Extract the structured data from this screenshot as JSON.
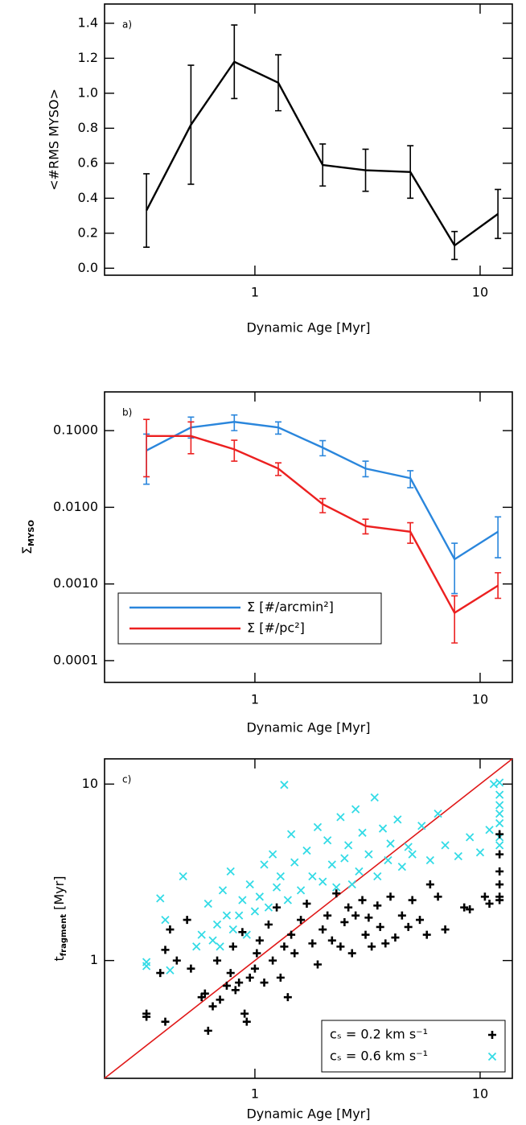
{
  "chart_data": [
    {
      "type": "line",
      "annotation": "a)",
      "x_label": "Dynamic Age [Myr]",
      "y_label": "<#RMS MYSO>",
      "x": [
        0.33,
        0.52,
        0.81,
        1.27,
        2.0,
        3.1,
        4.9,
        7.7,
        12.0
      ],
      "values": [
        0.33,
        0.82,
        1.18,
        1.06,
        0.59,
        0.56,
        0.55,
        0.13,
        0.31
      ],
      "errors": [
        0.21,
        0.34,
        0.21,
        0.16,
        0.12,
        0.12,
        0.15,
        0.08,
        0.14
      ],
      "color": "#000000",
      "xlim": [
        0.215,
        13.9
      ],
      "xticks": [
        1,
        10
      ],
      "xlog": true,
      "ylim": [
        -0.04,
        1.51
      ],
      "yticks": [
        {
          "value": 0,
          "label": "0.0"
        },
        0.2,
        0.4,
        0.6,
        0.8,
        {
          "value": 1,
          "label": "1.0"
        },
        1.2,
        1.4
      ]
    },
    {
      "type": "line",
      "annotation": "b)",
      "x_label": "Dynamic Age [Myr]",
      "y_label": {
        "text": "Σ",
        "sub": "MYSO"
      },
      "x": [
        0.33,
        0.52,
        0.81,
        1.27,
        2.0,
        3.1,
        4.9,
        7.7,
        12.0
      ],
      "series": [
        {
          "name": "Σ [#/arcmin²]",
          "color": "#2a86dc",
          "values": [
            0.055,
            0.11,
            0.13,
            0.11,
            0.06,
            0.032,
            0.024,
            0.0021,
            0.0048
          ],
          "lower": [
            0.02,
            0.08,
            0.1,
            0.09,
            0.047,
            0.025,
            0.018,
            0.00075,
            0.0022
          ],
          "upper": [
            0.09,
            0.15,
            0.16,
            0.13,
            0.074,
            0.04,
            0.03,
            0.0034,
            0.0075
          ]
        },
        {
          "name": "Σ [#/pc²]",
          "color": "#ec2020",
          "values": [
            0.085,
            0.085,
            0.057,
            0.032,
            0.011,
            0.0057,
            0.0048,
            0.00042,
            0.00095
          ],
          "lower": [
            0.025,
            0.05,
            0.04,
            0.026,
            0.0085,
            0.0045,
            0.0034,
            0.00017,
            0.00065
          ],
          "upper": [
            0.14,
            0.13,
            0.075,
            0.038,
            0.013,
            0.007,
            0.0063,
            0.0007,
            0.0014
          ]
        }
      ],
      "legend": "lower left",
      "xlim": [
        0.215,
        13.9
      ],
      "xticks": [
        1,
        10
      ],
      "xlog": true,
      "ylim": [
        5.2e-05,
        0.32
      ],
      "ylog": true,
      "yticks": [
        {
          "value": 0.1,
          "label": "0.1000"
        },
        {
          "value": 0.01,
          "label": "0.0100"
        },
        {
          "value": 0.001,
          "label": "0.0010"
        },
        {
          "value": 0.0001,
          "label": "0.0001"
        }
      ]
    },
    {
      "type": "scatter",
      "annotation": "c)",
      "x_label": "Dynamic Age [Myr]",
      "y_label": {
        "text": "t",
        "sub": "fragment",
        "unit": "[Myr]"
      },
      "series": [
        {
          "name": "cₛ = 0.2 km s⁻¹",
          "color": "#000000",
          "marker": "plus",
          "x": [
            0.33,
            0.33,
            0.38,
            0.4,
            0.4,
            0.42,
            0.45,
            0.5,
            0.52,
            0.58,
            0.6,
            0.62,
            0.65,
            0.68,
            0.7,
            0.75,
            0.78,
            0.8,
            0.82,
            0.85,
            0.88,
            0.9,
            0.92,
            0.95,
            1.0,
            1.02,
            1.05,
            1.1,
            1.15,
            1.2,
            1.25,
            1.3,
            1.35,
            1.4,
            1.45,
            1.5,
            1.6,
            1.7,
            1.8,
            1.9,
            2.0,
            2.1,
            2.2,
            2.3,
            2.4,
            2.5,
            2.6,
            2.7,
            2.8,
            3.0,
            3.1,
            3.2,
            3.3,
            3.5,
            3.6,
            3.8,
            4.0,
            4.2,
            4.5,
            4.8,
            5.0,
            5.4,
            5.8,
            6.0,
            6.5,
            7.0,
            8.5,
            9.0,
            10.5,
            11.0,
            12.2,
            12.2,
            12.2,
            12.2,
            12.2,
            12.2
          ],
          "values": [
            0.5,
            0.48,
            0.85,
            1.15,
            0.45,
            1.5,
            1.0,
            1.7,
            0.9,
            0.62,
            0.65,
            0.4,
            0.55,
            1.0,
            0.6,
            0.72,
            0.85,
            1.2,
            0.68,
            0.75,
            1.45,
            0.5,
            0.45,
            0.8,
            0.9,
            1.1,
            1.3,
            0.75,
            1.6,
            1.0,
            2.0,
            0.8,
            1.2,
            0.62,
            1.4,
            1.1,
            1.7,
            2.1,
            1.25,
            0.95,
            1.5,
            1.8,
            1.3,
            2.4,
            1.2,
            1.65,
            2.0,
            1.1,
            1.8,
            2.2,
            1.4,
            1.75,
            1.2,
            2.05,
            1.55,
            1.25,
            2.3,
            1.35,
            1.8,
            1.55,
            2.2,
            1.7,
            1.4,
            2.7,
            2.3,
            1.5,
            2.0,
            1.95,
            2.3,
            2.1,
            5.2,
            4.0,
            3.2,
            2.7,
            2.3,
            2.2
          ]
        },
        {
          "name": "cₛ = 0.6 km s⁻¹",
          "color": "#33dbe6",
          "marker": "x",
          "x": [
            0.33,
            0.33,
            0.38,
            0.4,
            0.42,
            0.48,
            0.55,
            0.58,
            0.62,
            0.65,
            0.68,
            0.7,
            0.72,
            0.75,
            0.78,
            0.8,
            0.85,
            0.88,
            0.92,
            0.95,
            1.0,
            1.05,
            1.1,
            1.15,
            1.2,
            1.25,
            1.3,
            1.35,
            1.4,
            1.45,
            1.5,
            1.6,
            1.7,
            1.8,
            1.9,
            2.0,
            2.1,
            2.2,
            2.3,
            2.4,
            2.5,
            2.6,
            2.7,
            2.8,
            2.9,
            3.0,
            3.2,
            3.4,
            3.5,
            3.7,
            3.9,
            4.0,
            4.3,
            4.5,
            4.8,
            5.0,
            5.5,
            6.0,
            6.5,
            7.0,
            8.0,
            9.0,
            10.0,
            11.0,
            11.5,
            12.2,
            12.2,
            12.2,
            12.2,
            12.2,
            12.2,
            12.2
          ],
          "values": [
            0.98,
            0.93,
            2.25,
            1.7,
            0.88,
            3.0,
            1.2,
            1.4,
            2.1,
            1.3,
            1.6,
            1.2,
            2.5,
            1.8,
            3.2,
            1.5,
            1.8,
            2.2,
            1.4,
            2.7,
            1.9,
            2.3,
            3.5,
            2.0,
            4.0,
            2.6,
            3.0,
            9.9,
            2.2,
            5.2,
            3.6,
            2.5,
            4.2,
            3.0,
            5.7,
            2.8,
            4.8,
            3.5,
            2.6,
            6.5,
            3.8,
            4.5,
            2.7,
            7.2,
            3.2,
            5.3,
            4.0,
            8.4,
            3.0,
            5.6,
            3.7,
            4.6,
            6.3,
            3.4,
            4.4,
            4.0,
            5.8,
            3.7,
            6.8,
            4.5,
            3.9,
            5.0,
            4.1,
            5.5,
            10.0,
            10.2,
            8.7,
            7.6,
            6.8,
            6.0,
            5.0,
            4.5
          ]
        }
      ],
      "reference_line": {
        "color": "#e01818",
        "x": [
          0.215,
          13.9
        ],
        "values": [
          0.215,
          13.9
        ]
      },
      "legend": "lower right",
      "xlim": [
        0.215,
        13.9
      ],
      "xticks": [
        1,
        10
      ],
      "xlog": true,
      "ylim": [
        0.215,
        13.9
      ],
      "yticks": [
        1,
        10
      ],
      "ylog": true
    }
  ]
}
